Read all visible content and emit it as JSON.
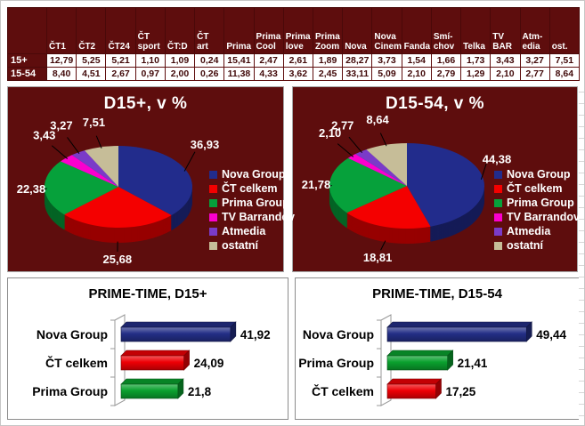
{
  "table": {
    "corner_label": "",
    "columns": [
      "ČT1",
      "ČT2",
      "ČT24",
      "ČT\nsport",
      "ČT:D",
      "ČT\nart",
      "Prima",
      "Prima\nCool",
      "Prima\nlove",
      "Prima\nZoom",
      "Nova",
      "Nova\nCinema",
      "Fanda",
      "Smí-\nchov",
      "Telka",
      "TV\nBAR",
      "Atm-\nedia",
      "ost."
    ],
    "rows": [
      {
        "label": "15+",
        "values": [
          "12,79",
          "5,25",
          "5,21",
          "1,10",
          "1,09",
          "0,24",
          "15,41",
          "2,47",
          "2,61",
          "1,89",
          "28,27",
          "3,73",
          "1,54",
          "1,66",
          "1,73",
          "3,43",
          "3,27",
          "7,51"
        ]
      },
      {
        "label": "15-54",
        "values": [
          "8,40",
          "4,51",
          "2,67",
          "0,97",
          "2,00",
          "0,26",
          "11,38",
          "4,33",
          "3,62",
          "2,45",
          "33,11",
          "5,09",
          "2,10",
          "2,79",
          "1,29",
          "2,10",
          "2,77",
          "8,64"
        ]
      }
    ]
  },
  "chart_data": [
    {
      "type": "pie",
      "title": "D15+, v %",
      "labels": [
        "Nova Group",
        "ČT celkem",
        "Prima Group",
        "TV Barrandov",
        "Atmedia",
        "ostatní"
      ],
      "values": [
        36.93,
        25.68,
        22.38,
        3.43,
        3.27,
        7.51
      ],
      "display_values": [
        "36,93",
        "25,68",
        "22,38",
        "3,43",
        "3,27",
        "7,51"
      ],
      "colors": [
        "#222C8C",
        "#F40000",
        "#06A13B",
        "#FB00CE",
        "#7A3BC8",
        "#C6BD98"
      ],
      "legend_position": "right",
      "background": "#5E0D0D",
      "start_angle_deg": 0,
      "direction": "clockwise"
    },
    {
      "type": "pie",
      "title": "D15-54, v %",
      "labels": [
        "Nova Group",
        "ČT celkem",
        "Prima Group",
        "TV Barrandov",
        "Atmedia",
        "ostatní"
      ],
      "values": [
        44.38,
        18.81,
        21.78,
        2.1,
        2.77,
        8.64
      ],
      "display_values": [
        "44,38",
        "18,81",
        "21,78",
        "2,10",
        "2,77",
        "8,64"
      ],
      "colors": [
        "#222C8C",
        "#F40000",
        "#06A13B",
        "#FB00CE",
        "#7A3BC8",
        "#C6BD98"
      ],
      "legend_position": "right",
      "background": "#5E0D0D",
      "start_angle_deg": 0,
      "direction": "clockwise"
    },
    {
      "type": "bar",
      "title": "PRIME-TIME, D15+",
      "categories": [
        "Nova Group",
        "ČT celkem",
        "Prima Group"
      ],
      "values": [
        41.92,
        24.09,
        21.8
      ],
      "display_values": [
        "41,92",
        "24,09",
        "21,8"
      ],
      "colors": [
        "#232E86",
        "#EE0005",
        "#0AA12E"
      ],
      "orientation": "horizontal",
      "grid": false,
      "legend": "none"
    },
    {
      "type": "bar",
      "title": "PRIME-TIME, D15-54",
      "categories": [
        "Nova Group",
        "Prima Group",
        "ČT celkem"
      ],
      "values": [
        49.44,
        21.41,
        17.25
      ],
      "display_values": [
        "49,44",
        "21,41",
        "17,25"
      ],
      "colors": [
        "#232E86",
        "#0AA12E",
        "#EE0005"
      ],
      "orientation": "horizontal",
      "grid": false,
      "legend": "none"
    }
  ],
  "colors": {
    "maroon_background": "#5E0D0D",
    "table_text": "#400808",
    "nova_group": "#222C8C",
    "ct_celkem": "#F40000",
    "prima_group": "#06A13B",
    "tv_barrandov": "#FB00CE",
    "atmedia": "#7A3BC8",
    "ostatni": "#C6BD98"
  }
}
